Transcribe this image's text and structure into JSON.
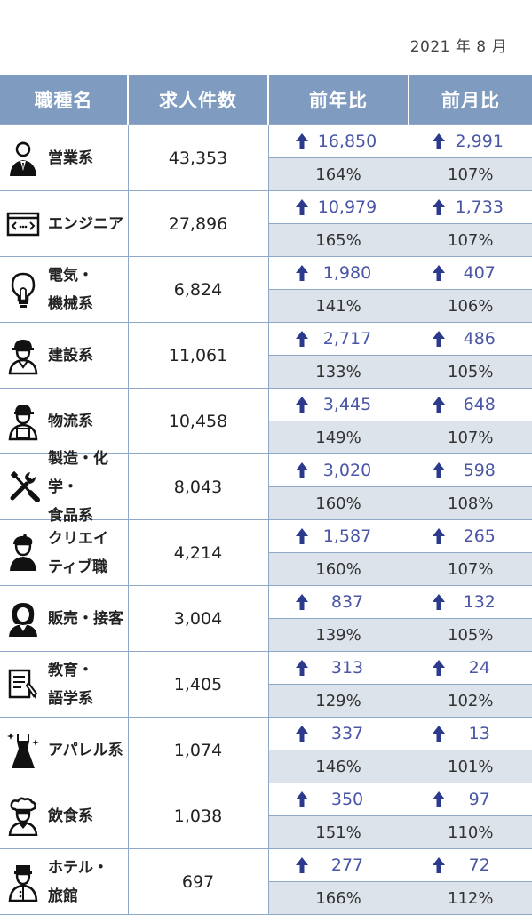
{
  "date": "2021 年 8 月",
  "headers": [
    "職種名",
    "求人件数",
    "前年比",
    "前月比"
  ],
  "rows": [
    {
      "name": "営業系",
      "icon": "businessman-icon",
      "count": "43,353",
      "yoy_diff": "16,850",
      "yoy_pct": "164%",
      "mom_diff": "2,991",
      "mom_pct": "107%"
    },
    {
      "name": "エンジニア",
      "icon": "code-window-icon",
      "count": "27,896",
      "yoy_diff": "10,979",
      "yoy_pct": "165%",
      "mom_diff": "1,733",
      "mom_pct": "107%"
    },
    {
      "name": "電気・\n機械系",
      "icon": "lightbulb-icon",
      "count": "6,824",
      "yoy_diff": "1,980",
      "yoy_pct": "141%",
      "mom_diff": "407",
      "mom_pct": "106%"
    },
    {
      "name": "建設系",
      "icon": "hardhat-worker-icon",
      "count": "11,061",
      "yoy_diff": "2,717",
      "yoy_pct": "133%",
      "mom_diff": "486",
      "mom_pct": "105%"
    },
    {
      "name": "物流系",
      "icon": "delivery-worker-icon",
      "count": "10,458",
      "yoy_diff": "3,445",
      "yoy_pct": "149%",
      "mom_diff": "648",
      "mom_pct": "107%"
    },
    {
      "name": "製造・化学・\n食品系",
      "icon": "tools-icon",
      "count": "8,043",
      "yoy_diff": "3,020",
      "yoy_pct": "160%",
      "mom_diff": "598",
      "mom_pct": "108%"
    },
    {
      "name": "クリエイ\nティブ職",
      "icon": "artist-icon",
      "count": "4,214",
      "yoy_diff": "1,587",
      "yoy_pct": "160%",
      "mom_diff": "265",
      "mom_pct": "107%"
    },
    {
      "name": "販売・接客",
      "icon": "sales-staff-icon",
      "count": "3,004",
      "yoy_diff": "837",
      "yoy_pct": "139%",
      "mom_diff": "132",
      "mom_pct": "105%"
    },
    {
      "name": "教育・\n語学系",
      "icon": "document-pen-icon",
      "count": "1,405",
      "yoy_diff": "313",
      "yoy_pct": "129%",
      "mom_diff": "24",
      "mom_pct": "102%"
    },
    {
      "name": "アパレル系",
      "icon": "dress-icon",
      "count": "1,074",
      "yoy_diff": "337",
      "yoy_pct": "146%",
      "mom_diff": "13",
      "mom_pct": "101%"
    },
    {
      "name": "飲食系",
      "icon": "chef-icon",
      "count": "1,038",
      "yoy_diff": "350",
      "yoy_pct": "151%",
      "mom_diff": "97",
      "mom_pct": "110%"
    },
    {
      "name": "ホテル・\n旅館",
      "icon": "bellhop-icon",
      "count": "697",
      "yoy_diff": "277",
      "yoy_pct": "166%",
      "mom_diff": "72",
      "mom_pct": "112%"
    }
  ],
  "colors": {
    "header_bg": "#7f9cc0",
    "arrow": "#2b3a8c",
    "diff_text": "#4a56a6",
    "pct_bg": "#dde3ea",
    "border": "#8fa7c8"
  }
}
